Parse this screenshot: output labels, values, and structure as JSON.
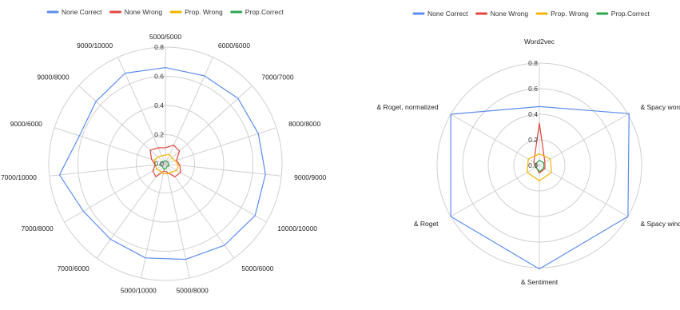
{
  "chart_data": [
    {
      "type": "radar",
      "title": "",
      "categories": [
        "5000/5000",
        "6000/6000",
        "7000/7000",
        "8000/8000",
        "9000/9000",
        "10000/10000",
        "5000/6000",
        "5000/8000",
        "5000/10000",
        "7000/6000",
        "7000/8000",
        "7000/10000",
        "9000/6000",
        "9000/8000",
        "9000/10000"
      ],
      "ylim": [
        0,
        0.8
      ],
      "ticks": [
        "0.0",
        "0.2",
        "0.4",
        "0.6",
        "0.8"
      ],
      "tick_values": [
        0,
        0.2,
        0.4,
        0.6,
        0.8
      ],
      "grid": true,
      "legend_position": "top",
      "series": [
        {
          "name": "None Correct",
          "color": "#5b8def",
          "values": [
            0.66,
            0.66,
            0.67,
            0.67,
            0.69,
            0.71,
            0.69,
            0.67,
            0.66,
            0.64,
            0.65,
            0.73,
            0.62,
            0.64,
            0.68
          ]
        },
        {
          "name": "None Wrong",
          "color": "#e0463e",
          "values": [
            0.11,
            0.14,
            0.13,
            0.08,
            0.1,
            0.12,
            0.11,
            0.06,
            0.05,
            0.11,
            0.1,
            0.07,
            0.1,
            0.14,
            0.12
          ]
        },
        {
          "name": "Prop. Wrong",
          "color": "#f4b400",
          "values": [
            0.06,
            0.07,
            0.06,
            0.07,
            0.09,
            0.09,
            0.07,
            0.07,
            0.07,
            0.06,
            0.07,
            0.07,
            0.08,
            0.07,
            0.06
          ]
        },
        {
          "name": "Prop.Correct",
          "color": "#2ea44f",
          "values": [
            0.02,
            0.02,
            0.02,
            0.02,
            0.02,
            0.03,
            0.02,
            0.03,
            0.04,
            0.03,
            0.03,
            0.04,
            0.03,
            0.02,
            0.02
          ]
        }
      ]
    },
    {
      "type": "radar",
      "title": "",
      "categories": [
        "Word2vec",
        "& Spacy word v.",
        "& Spacy window v.",
        "& Sentiment",
        "& Roget",
        "& Roget, normalized"
      ],
      "ylim": [
        0,
        0.8
      ],
      "ticks": [
        "0.0",
        "0.2",
        "0.4",
        "0.6",
        "0.8"
      ],
      "tick_values": [
        0,
        0.2,
        0.4,
        0.6,
        0.8
      ],
      "grid": true,
      "legend_position": "top",
      "series": [
        {
          "name": "None Correct",
          "color": "#5b8def",
          "values": [
            0.46,
            0.81,
            0.8,
            0.81,
            0.8,
            0.8
          ]
        },
        {
          "name": "None Wrong",
          "color": "#e0463e",
          "values": [
            0.33,
            0.05,
            0.05,
            0.06,
            0.03,
            0.05
          ]
        },
        {
          "name": "Prop. Wrong",
          "color": "#f4b400",
          "values": [
            0.09,
            0.1,
            0.11,
            0.12,
            0.11,
            0.1
          ]
        },
        {
          "name": "Prop.Correct",
          "color": "#2ea44f",
          "values": [
            0.04,
            0.04,
            0.04,
            0.05,
            0.03,
            0.03
          ]
        }
      ]
    }
  ]
}
